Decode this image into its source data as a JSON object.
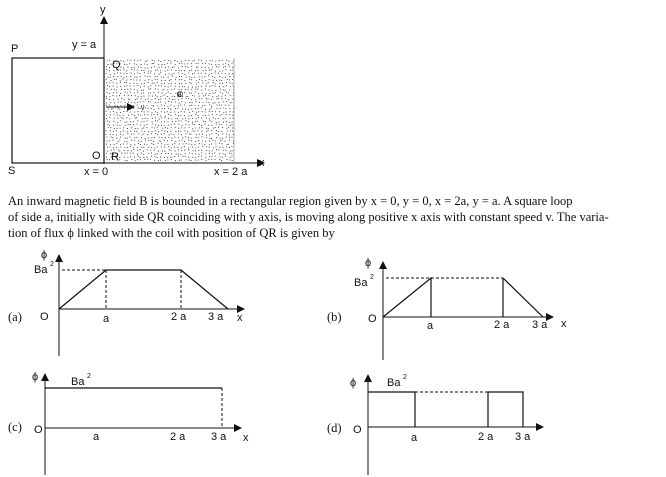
{
  "figure": {
    "label_y": "y",
    "label_ya": "y = a",
    "label_P": "P",
    "label_Q": "Q",
    "label_v": "v",
    "label_B": "B",
    "label_O": "O",
    "label_R": "R",
    "label_S": "S",
    "label_x0": "x = 0",
    "label_x2a": "x = 2 a",
    "label_x": "x"
  },
  "question": {
    "line1": "An inward magnetic field B is bounded in a rectangular region given by x = 0, y = 0,  x = 2a, y = a.  A square loop",
    "line2": "of side a, initially with side QR coinciding with y axis, is moving along positive x axis with constant speed v. The varia-",
    "line3": "tion of flux ϕ linked with the coil with position of QR is given by"
  },
  "options": [
    {
      "tag": "(a)",
      "phi": "ϕ",
      "ba": "Ba",
      "sup": "2",
      "o": "O",
      "a": "a",
      "t2": "2 a",
      "t3": "3 a",
      "x": "x"
    },
    {
      "tag": "(b)",
      "phi": "ϕ",
      "ba": "Ba",
      "sup": "2",
      "o": "O",
      "a": "a",
      "t2": "2 a",
      "t3": "3 a",
      "x": "x"
    },
    {
      "tag": "(c)",
      "phi": "ϕ",
      "ba": "Ba",
      "sup": "2",
      "o": "O",
      "a": "a",
      "t2": "2 a",
      "t3": "3 a",
      "x": "x"
    },
    {
      "tag": "(d)",
      "phi": "ϕ",
      "ba": "Ba",
      "sup": "2",
      "o": "O",
      "a": "a",
      "t2": "2 a",
      "t3": "3 a"
    }
  ]
}
